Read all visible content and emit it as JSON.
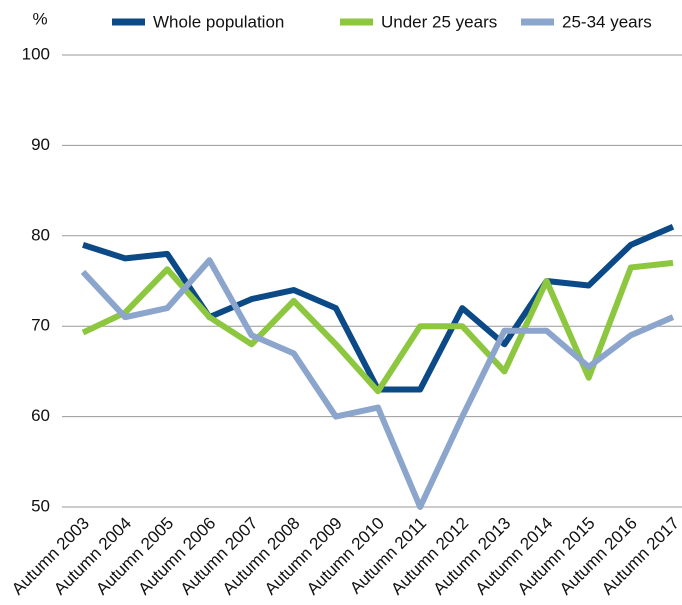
{
  "chart_data": {
    "type": "line",
    "y_label": "%",
    "categories": [
      "Autumn 2003",
      "Autumn 2004",
      "Autumn 2005",
      "Autumn 2006",
      "Autumn 2007",
      "Autumn 2008",
      "Autumn 2009",
      "Autumn 2010",
      "Autumn 2011",
      "Autumn 2012",
      "Autumn 2013",
      "Autumn 2014",
      "Autumn 2015",
      "Autumn 2016",
      "Autumn 2017"
    ],
    "series": [
      {
        "name": "Whole population",
        "color": "#0b4a86",
        "values": [
          79,
          77.5,
          78,
          71,
          73,
          74,
          72,
          63,
          63,
          72,
          68,
          75,
          74.5,
          79,
          81
        ]
      },
      {
        "name": "Under 25 years",
        "color": "#8dc63f",
        "values": [
          69.3,
          71.5,
          76.3,
          71,
          68,
          72.8,
          68,
          62.8,
          70,
          70,
          65,
          75,
          64.3,
          76.5,
          77
        ]
      },
      {
        "name": "25-34 years",
        "color": "#8ba5cc",
        "values": [
          76,
          71,
          72,
          77.3,
          69,
          67,
          60,
          61,
          50,
          60,
          69.5,
          69.5,
          65.5,
          69,
          71
        ]
      }
    ],
    "ylim": [
      50,
      100
    ],
    "yticks": [
      50,
      60,
      70,
      80,
      90,
      100
    ],
    "grid": true,
    "legend": "top"
  }
}
